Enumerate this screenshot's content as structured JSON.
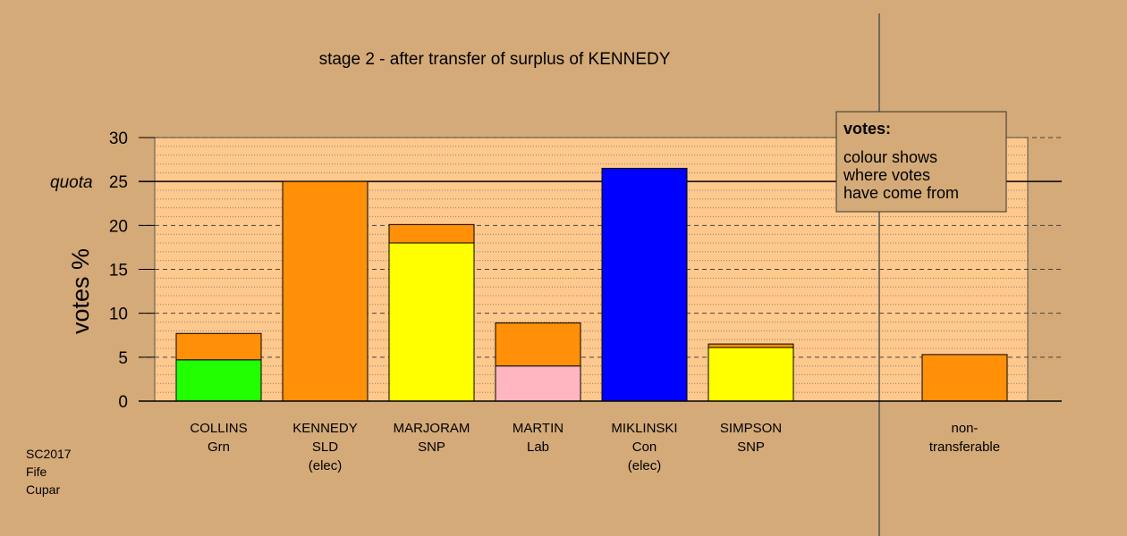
{
  "chart_data": {
    "type": "bar",
    "stacked": true,
    "title": "stage 2 - after transfer of surplus of KENNEDY",
    "ylabel": "votes %",
    "ylim": [
      0,
      30
    ],
    "yticks": [
      0,
      5,
      10,
      15,
      20,
      25,
      30
    ],
    "quota": {
      "label": "quota",
      "value": 25
    },
    "grid": true,
    "colors": {
      "background": "#d4aa78",
      "plot_area": "#ffc88c",
      "Grn": "#22ff00",
      "SLD": "#ff9008",
      "SNP": "#ffff00",
      "Lab": "#ffb6c1",
      "Con": "#0000ff"
    },
    "categories": [
      {
        "name": "COLLINS",
        "party": "Grn",
        "status": ""
      },
      {
        "name": "KENNEDY",
        "party": "SLD",
        "status": "(elec)"
      },
      {
        "name": "MARJORAM",
        "party": "SNP",
        "status": ""
      },
      {
        "name": "MARTIN",
        "party": "Lab",
        "status": ""
      },
      {
        "name": "MIKLINSKI",
        "party": "Con",
        "status": "(elec)"
      },
      {
        "name": "SIMPSON",
        "party": "SNP",
        "status": ""
      }
    ],
    "bars": [
      {
        "segments": [
          {
            "from": "Grn",
            "value": 4.7
          },
          {
            "from": "SLD",
            "value": 3.0
          }
        ]
      },
      {
        "segments": [
          {
            "from": "SLD",
            "value": 25.0
          }
        ]
      },
      {
        "segments": [
          {
            "from": "SNP",
            "value": 18.0
          },
          {
            "from": "SLD",
            "value": 2.1
          }
        ]
      },
      {
        "segments": [
          {
            "from": "Lab",
            "value": 4.0
          },
          {
            "from": "SLD",
            "value": 4.9
          }
        ]
      },
      {
        "segments": [
          {
            "from": "Con",
            "value": 26.5
          }
        ]
      },
      {
        "segments": [
          {
            "from": "SNP",
            "value": 6.1
          },
          {
            "from": "SLD",
            "value": 0.4
          }
        ]
      }
    ],
    "non_transferable": {
      "label_line1": "non-",
      "label_line2": "transferable",
      "segments": [
        {
          "from": "SLD",
          "value": 5.3
        }
      ]
    },
    "legend": {
      "placement": "top-right",
      "title": "votes:",
      "lines": [
        "colour shows",
        "where votes",
        "have come from"
      ]
    }
  },
  "footer": {
    "lines": [
      "SC2017",
      "Fife",
      "Cupar"
    ]
  }
}
